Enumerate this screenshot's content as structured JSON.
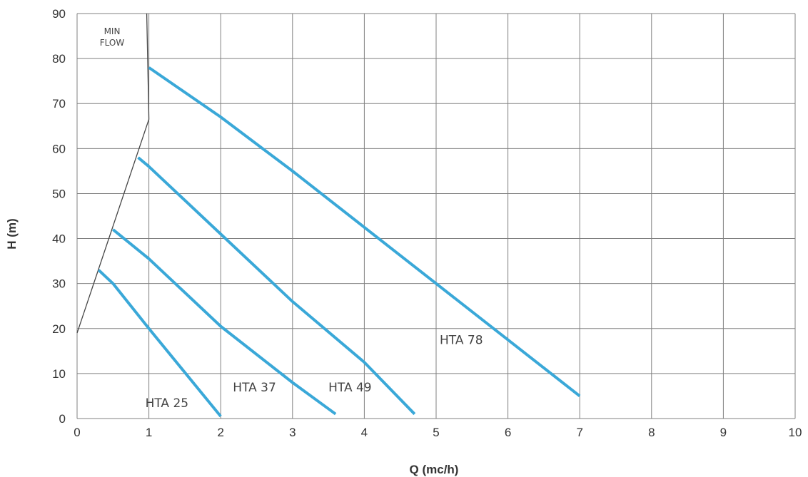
{
  "chart_data": {
    "type": "line",
    "title": "",
    "xlabel": "Q (mc/h)",
    "ylabel": "H (m)",
    "xlim": [
      0,
      10
    ],
    "ylim": [
      0,
      90
    ],
    "x_ticks": [
      "0",
      "1",
      "2",
      "3",
      "4",
      "5",
      "6",
      "7",
      "8",
      "9",
      "10"
    ],
    "y_ticks": [
      "0",
      "10",
      "20",
      "30",
      "40",
      "50",
      "60",
      "70",
      "80",
      "90"
    ],
    "grid": true,
    "series_color": "#3aa8d8",
    "min_flow_color": "#444444",
    "series": [
      {
        "name": "HTA 25",
        "points": [
          [
            0.3,
            33
          ],
          [
            0.5,
            30
          ],
          [
            1.0,
            20
          ],
          [
            2.0,
            0.5
          ]
        ]
      },
      {
        "name": "HTA 37",
        "points": [
          [
            0.5,
            42
          ],
          [
            1.0,
            35.5
          ],
          [
            2.0,
            20.5
          ],
          [
            3.0,
            8
          ],
          [
            3.6,
            1
          ]
        ]
      },
      {
        "name": "HTA 49",
        "points": [
          [
            0.85,
            58
          ],
          [
            1.0,
            56
          ],
          [
            2.0,
            41
          ],
          [
            3.0,
            26
          ],
          [
            4.0,
            12.5
          ],
          [
            4.7,
            1
          ]
        ]
      },
      {
        "name": "HTA 78",
        "points": [
          [
            1.0,
            78
          ],
          [
            2.0,
            67
          ],
          [
            3.0,
            55
          ],
          [
            4.0,
            42.5
          ],
          [
            5.0,
            30
          ],
          [
            6.0,
            17.5
          ],
          [
            7.0,
            5
          ]
        ]
      }
    ],
    "min_flow_line": {
      "label_line1": "MIN",
      "label_line2": "FLOW",
      "points": [
        [
          0,
          19
        ],
        [
          1.0,
          66.5
        ],
        [
          0.97,
          90
        ]
      ]
    },
    "series_labels": [
      {
        "text": "HTA 25",
        "x": 0.95,
        "y": 3.5
      },
      {
        "text": "HTA 37",
        "x": 2.17,
        "y": 7
      },
      {
        "text": "HTA 49",
        "x": 3.5,
        "y": 7
      },
      {
        "text": "HTA 78",
        "x": 5.05,
        "y": 17.5
      }
    ]
  }
}
